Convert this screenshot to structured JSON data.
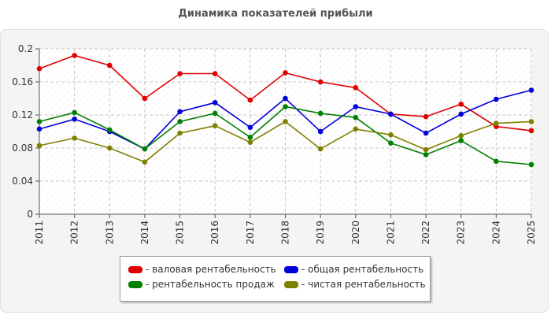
{
  "title": "Динамика показателей прибыли",
  "chart_data": {
    "type": "line",
    "x": [
      "2011",
      "2012",
      "2013",
      "2014",
      "2015",
      "2016",
      "2017",
      "2018",
      "2019",
      "2020",
      "2021",
      "2022",
      "2023",
      "2024",
      "2025"
    ],
    "ylim": [
      0,
      0.2
    ],
    "yticks": [
      "0",
      "0.04",
      "0.08",
      "0.12",
      "0.16",
      "0.2"
    ],
    "grid": true,
    "legend_position": "bottom",
    "series": [
      {
        "name": "- валовая рентабельность",
        "color": "#e00000",
        "values": [
          0.176,
          0.192,
          0.18,
          0.14,
          0.17,
          0.17,
          0.138,
          0.171,
          0.16,
          0.153,
          0.121,
          0.118,
          0.133,
          0.106,
          0.101
        ]
      },
      {
        "name": "- общая рентабельность",
        "color": "#0000dd",
        "values": [
          0.103,
          0.115,
          0.1,
          0.079,
          0.124,
          0.135,
          0.105,
          0.14,
          0.1,
          0.13,
          0.121,
          0.098,
          0.121,
          0.139,
          0.15
        ]
      },
      {
        "name": "- рентабельность продаж",
        "color": "#008000",
        "values": [
          0.112,
          0.123,
          0.102,
          0.079,
          0.112,
          0.122,
          0.093,
          0.13,
          0.122,
          0.117,
          0.086,
          0.072,
          0.089,
          0.064,
          0.06
        ]
      },
      {
        "name": "- чистая рентабельность",
        "color": "#808000",
        "values": [
          0.083,
          0.092,
          0.08,
          0.063,
          0.098,
          0.107,
          0.087,
          0.112,
          0.079,
          0.103,
          0.096,
          0.078,
          0.095,
          0.11,
          0.112
        ]
      }
    ]
  }
}
